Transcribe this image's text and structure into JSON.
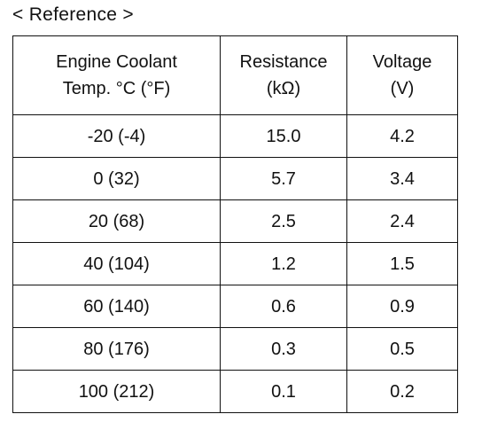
{
  "heading": "< Reference >",
  "table": {
    "headers": {
      "temp_line1": "Engine Coolant",
      "temp_line2": "Temp. °C (°F)",
      "res_line1": "Resistance",
      "res_line2": "(kΩ)",
      "volt_line1": "Voltage",
      "volt_line2": "(V)"
    },
    "rows": [
      {
        "temp": "-20 (-4)",
        "resistance": "15.0",
        "voltage": "4.2"
      },
      {
        "temp": "0 (32)",
        "resistance": "5.7",
        "voltage": "3.4"
      },
      {
        "temp": "20 (68)",
        "resistance": "2.5",
        "voltage": "2.4"
      },
      {
        "temp": "40 (104)",
        "resistance": "1.2",
        "voltage": "1.5"
      },
      {
        "temp": "60 (140)",
        "resistance": "0.6",
        "voltage": "0.9"
      },
      {
        "temp": "80 (176)",
        "resistance": "0.3",
        "voltage": "0.5"
      },
      {
        "temp": "100 (212)",
        "resistance": "0.1",
        "voltage": "0.2"
      }
    ]
  }
}
